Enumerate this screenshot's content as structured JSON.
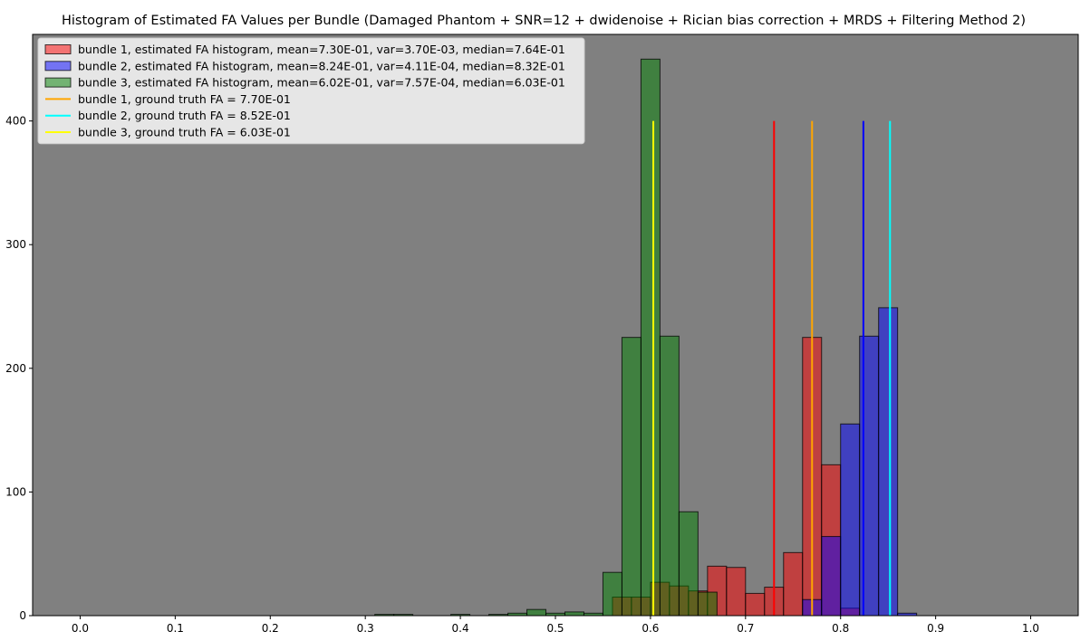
{
  "chart_data": {
    "type": "bar",
    "title": "Histogram of Estimated FA Values per Bundle (Damaged Phantom + SNR=12 + dwidenoise + Rician bias correction + MRDS + Filtering Method 2)",
    "xlabel": "",
    "ylabel": "",
    "xlim": [
      -0.05,
      1.05
    ],
    "ylim": [
      0,
      470
    ],
    "xticks": [
      0.0,
      0.1,
      0.2,
      0.3,
      0.4,
      0.5,
      0.6,
      0.7,
      0.8,
      0.9,
      1.0
    ],
    "xtick_labels": [
      "0.0",
      "0.1",
      "0.2",
      "0.3",
      "0.4",
      "0.5",
      "0.6",
      "0.7",
      "0.8",
      "0.9",
      "1.0"
    ],
    "yticks": [
      0,
      100,
      200,
      300,
      400
    ],
    "ytick_labels": [
      "0",
      "100",
      "200",
      "300",
      "400"
    ],
    "background_color": "#808080",
    "grid": false,
    "legend_position": "top-left",
    "histograms": [
      {
        "name": "bundle 1, estimated FA histogram, mean=7.30E-01, var=3.70E-03, median=7.64E-01",
        "color": "#ff0000",
        "bins": [
          [
            0.56,
            0.58,
            15
          ],
          [
            0.58,
            0.6,
            15
          ],
          [
            0.6,
            0.62,
            27
          ],
          [
            0.62,
            0.64,
            24
          ],
          [
            0.64,
            0.66,
            20
          ],
          [
            0.66,
            0.68,
            40
          ],
          [
            0.68,
            0.7,
            39
          ],
          [
            0.7,
            0.72,
            18
          ],
          [
            0.72,
            0.74,
            23
          ],
          [
            0.74,
            0.76,
            51
          ],
          [
            0.76,
            0.78,
            225
          ],
          [
            0.78,
            0.8,
            122
          ],
          [
            0.8,
            0.82,
            6
          ]
        ]
      },
      {
        "name": "bundle 2, estimated FA histogram, mean=8.24E-01, var=4.11E-04, median=8.32E-01",
        "color": "#0000ff",
        "bins": [
          [
            0.76,
            0.78,
            13
          ],
          [
            0.78,
            0.8,
            64
          ],
          [
            0.8,
            0.82,
            155
          ],
          [
            0.82,
            0.84,
            226
          ],
          [
            0.84,
            0.86,
            249
          ],
          [
            0.86,
            0.88,
            2
          ]
        ]
      },
      {
        "name": "bundle 3, estimated FA histogram, mean=6.02E-01, var=7.57E-04, median=6.03E-01",
        "color": "#008000",
        "bins": [
          [
            0.31,
            0.33,
            1
          ],
          [
            0.33,
            0.35,
            1
          ],
          [
            0.39,
            0.41,
            1
          ],
          [
            0.43,
            0.45,
            1
          ],
          [
            0.45,
            0.47,
            2
          ],
          [
            0.47,
            0.49,
            5
          ],
          [
            0.49,
            0.51,
            2
          ],
          [
            0.51,
            0.53,
            3
          ],
          [
            0.53,
            0.55,
            2
          ],
          [
            0.55,
            0.57,
            35
          ],
          [
            0.57,
            0.59,
            225
          ],
          [
            0.59,
            0.61,
            450
          ],
          [
            0.61,
            0.63,
            226
          ],
          [
            0.63,
            0.65,
            84
          ],
          [
            0.65,
            0.67,
            19
          ]
        ]
      }
    ],
    "vlines": [
      {
        "x": 0.73,
        "ymax": 400,
        "color": "#ff0000",
        "label": ""
      },
      {
        "x": 0.77,
        "ymax": 400,
        "color": "#ffa500",
        "label": "bundle 1, ground truth FA = 7.70E-01"
      },
      {
        "x": 0.824,
        "ymax": 400,
        "color": "#0000ff",
        "label": ""
      },
      {
        "x": 0.852,
        "ymax": 400,
        "color": "#00ffff",
        "label": "bundle 2, ground truth FA = 8.52E-01"
      },
      {
        "x": 0.603,
        "ymax": 400,
        "color": "#ffff00",
        "label": "bundle 3, ground truth FA = 6.03E-01"
      }
    ],
    "legend": [
      {
        "kind": "patch",
        "label": "bundle 1, estimated FA histogram, mean=7.30E-01, var=3.70E-03, median=7.64E-01",
        "color": "#ff0000"
      },
      {
        "kind": "patch",
        "label": "bundle 2, estimated FA histogram, mean=8.24E-01, var=4.11E-04, median=8.32E-01",
        "color": "#0000ff"
      },
      {
        "kind": "patch",
        "label": "bundle 3, estimated FA histogram, mean=6.02E-01, var=7.57E-04, median=6.03E-01",
        "color": "#008000"
      },
      {
        "kind": "line",
        "label": "bundle 1, ground truth FA = 7.70E-01",
        "color": "#ffa500"
      },
      {
        "kind": "line",
        "label": "bundle 2, ground truth FA = 8.52E-01",
        "color": "#00ffff"
      },
      {
        "kind": "line",
        "label": "bundle 3, ground truth FA = 6.03E-01",
        "color": "#ffff00"
      }
    ]
  }
}
